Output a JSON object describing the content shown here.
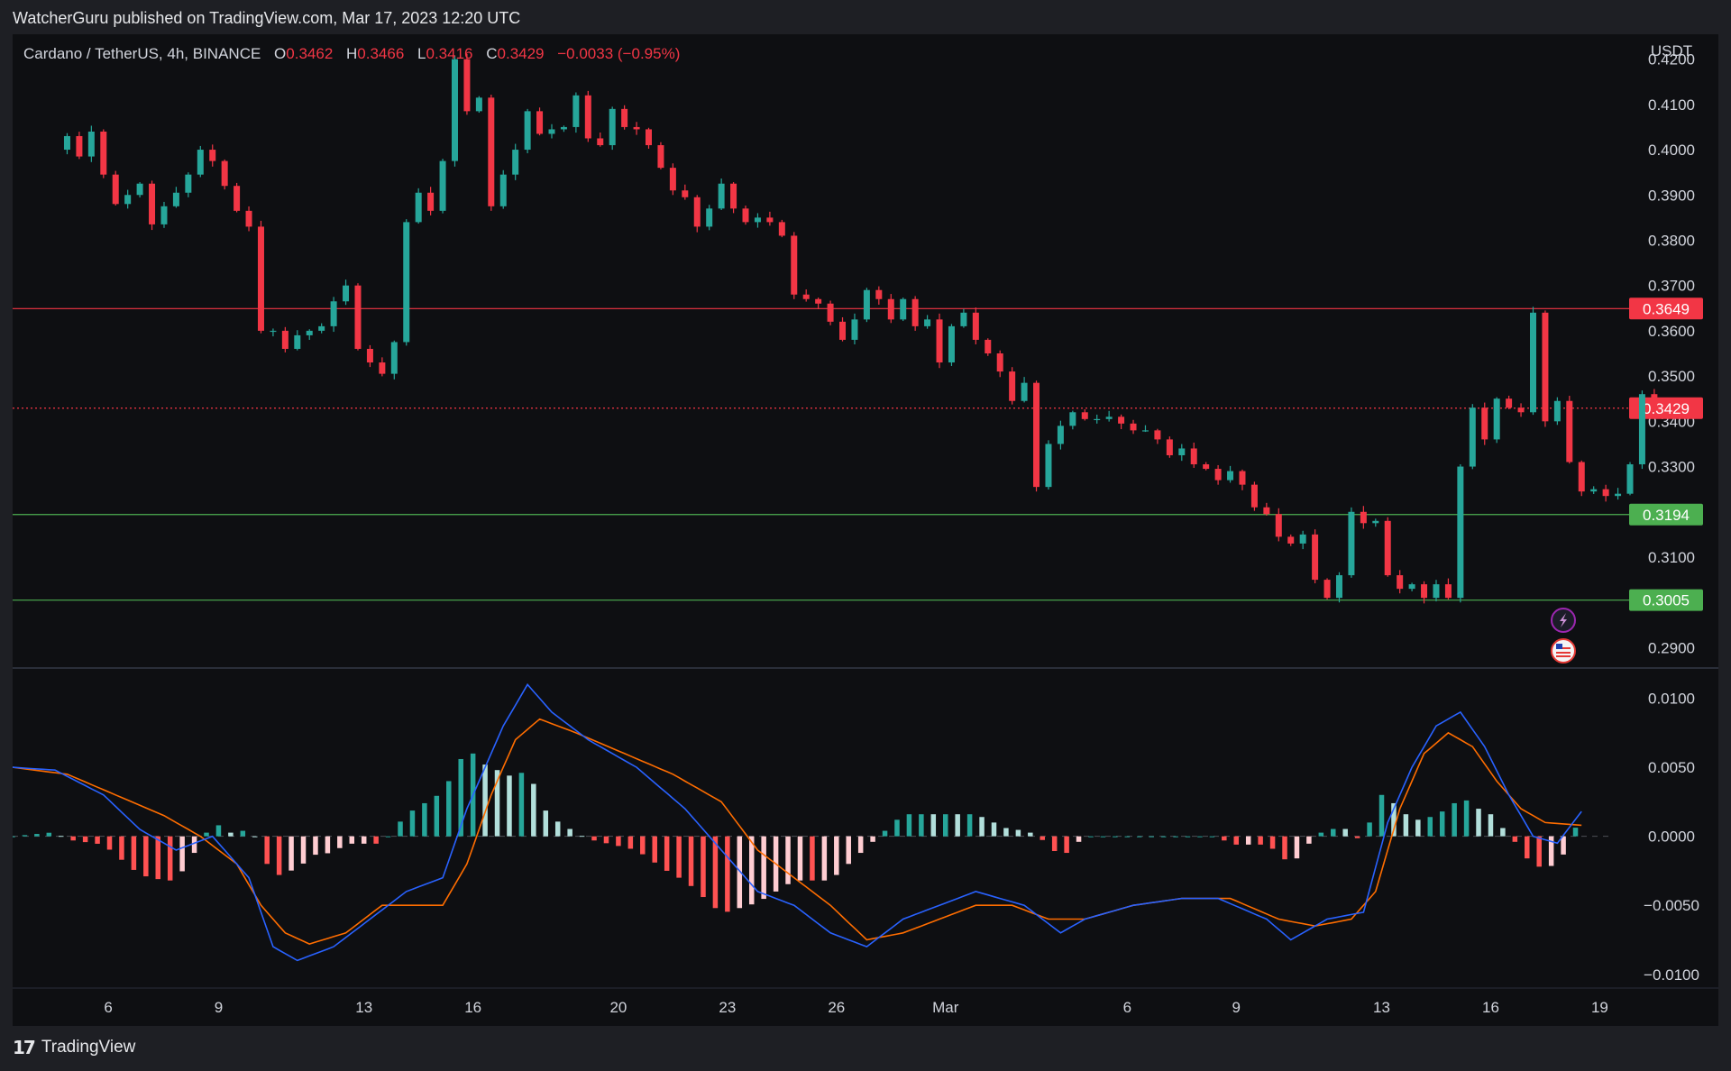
{
  "header": {
    "published": "WatcherGuru published on TradingView.com, Mar 17, 2023 12:20 UTC"
  },
  "legend": {
    "symbol": "Cardano / TetherUS, 4h, BINANCE",
    "o_label": "O",
    "o_value": "0.3462",
    "h_label": "H",
    "h_value": "0.3466",
    "l_label": "L",
    "l_value": "0.3416",
    "c_label": "C",
    "c_value": "0.3429",
    "change": "−0.0033 (−0.95%)"
  },
  "footer": {
    "brand": "TradingView",
    "logo": "17"
  },
  "colors": {
    "bull": "#26a69a",
    "bear": "#f23645",
    "macd": "#2962ff",
    "signal": "#ff6d00",
    "hist_bull_strong": "#26a69a",
    "hist_bull_weak": "#b2dfdb",
    "hist_bear_strong": "#ff5252",
    "hist_bear_weak": "#ffcdd2",
    "support": "#4caf50",
    "resistance": "#f23645"
  },
  "icons": [
    "lightning-icon",
    "us-flag-icon"
  ],
  "chart_data": [
    {
      "type": "candlestick",
      "currency": "USDT",
      "ylim": [
        0.2855,
        0.4255
      ],
      "y_ticks": [
        "0.4200",
        "0.4100",
        "0.4000",
        "0.3900",
        "0.3800",
        "0.3700",
        "0.3600",
        "0.3500",
        "0.3400",
        "0.3300",
        "0.3100",
        "0.2900"
      ],
      "x_ticks": [
        {
          "label": "6",
          "pos": 3.4
        },
        {
          "label": "9",
          "pos": 12.5
        },
        {
          "label": "13",
          "pos": 24.5
        },
        {
          "label": "16",
          "pos": 33.5
        },
        {
          "label": "20",
          "pos": 45.5
        },
        {
          "label": "23",
          "pos": 54.5
        },
        {
          "label": "26",
          "pos": 63.5
        },
        {
          "label": "Mar",
          "pos": 72.5
        },
        {
          "label": "6",
          "pos": 87.5
        },
        {
          "label": "9",
          "pos": 96.5
        },
        {
          "label": "13",
          "pos": 108.5
        },
        {
          "label": "16",
          "pos": 117.5
        },
        {
          "label": "19",
          "pos": 126.5
        }
      ],
      "x_range": [
        -4.5,
        129
      ],
      "levels": [
        {
          "value": 0.3649,
          "label": "0.3649",
          "style": "resistance"
        },
        {
          "value": 0.3429,
          "label": "0.3429",
          "style": "current"
        },
        {
          "value": 0.3194,
          "label": "0.3194",
          "style": "support"
        },
        {
          "value": 0.3005,
          "label": "0.3005",
          "style": "support"
        }
      ],
      "path": [
        0.4,
        0.403,
        0.3985,
        0.404,
        0.3945,
        0.388,
        0.39,
        0.3925,
        0.3835,
        0.3875,
        0.3905,
        0.3945,
        0.4,
        0.3975,
        0.392,
        0.3865,
        0.383,
        0.36,
        0.36,
        0.356,
        0.359,
        0.36,
        0.361,
        0.3665,
        0.37,
        0.356,
        0.353,
        0.3505,
        0.3575,
        0.384,
        0.3905,
        0.3865,
        0.3975,
        0.42,
        0.4085,
        0.4115,
        0.3875,
        0.3945,
        0.4,
        0.4085,
        0.4035,
        0.4045,
        0.405,
        0.412,
        0.4025,
        0.401,
        0.409,
        0.405,
        0.4045,
        0.401,
        0.396,
        0.391,
        0.3895,
        0.383,
        0.387,
        0.3925,
        0.387,
        0.384,
        0.385,
        0.384,
        0.381,
        0.368,
        0.367,
        0.366,
        0.362,
        0.358,
        0.3625,
        0.369,
        0.367,
        0.3625,
        0.367,
        0.361,
        0.3625,
        0.353,
        0.361,
        0.364,
        0.358,
        0.355,
        0.351,
        0.3445,
        0.3485,
        0.3255,
        0.335,
        0.339,
        0.342,
        0.3405,
        0.3405,
        0.341,
        0.3395,
        0.338,
        0.338,
        0.336,
        0.3325,
        0.334,
        0.3305,
        0.3295,
        0.327,
        0.329,
        0.326,
        0.321,
        0.3195,
        0.3145,
        0.313,
        0.315,
        0.305,
        0.301,
        0.306,
        0.32,
        0.3175,
        0.318,
        0.306,
        0.303,
        0.304,
        0.301,
        0.304,
        0.301,
        0.33,
        0.343,
        0.336,
        0.345,
        0.343,
        0.342,
        0.364,
        0.34,
        0.3445,
        0.331,
        0.3245,
        0.325,
        0.3235,
        0.324,
        0.3305,
        0.346,
        0.3429
      ]
    },
    {
      "type": "macd",
      "ylim": [
        -0.0108,
        0.012
      ],
      "y_ticks": [
        {
          "value": 0.01,
          "label": "0.0100"
        },
        {
          "value": 0.005,
          "label": "0.0050"
        },
        {
          "value": 0.0,
          "label": "0.0000"
        },
        {
          "value": -0.005,
          "label": "−0.0050"
        },
        {
          "value": -0.01,
          "label": "−0.0100"
        }
      ],
      "macd_keypoints": [
        [
          -4.5,
          0.005
        ],
        [
          -1,
          0.0048
        ],
        [
          3,
          0.003
        ],
        [
          6,
          0.0005
        ],
        [
          9,
          -0.001
        ],
        [
          12,
          0.0
        ],
        [
          15,
          -0.003
        ],
        [
          17,
          -0.008
        ],
        [
          19,
          -0.009
        ],
        [
          22,
          -0.008
        ],
        [
          25,
          -0.006
        ],
        [
          28,
          -0.004
        ],
        [
          31,
          -0.003
        ],
        [
          33,
          0.002
        ],
        [
          36,
          0.008
        ],
        [
          38,
          0.011
        ],
        [
          40,
          0.009
        ],
        [
          43,
          0.007
        ],
        [
          47,
          0.005
        ],
        [
          51,
          0.002
        ],
        [
          54,
          -0.001
        ],
        [
          57,
          -0.004
        ],
        [
          60,
          -0.005
        ],
        [
          63,
          -0.007
        ],
        [
          66,
          -0.008
        ],
        [
          69,
          -0.006
        ],
        [
          72,
          -0.005
        ],
        [
          75,
          -0.004
        ],
        [
          79,
          -0.005
        ],
        [
          82,
          -0.007
        ],
        [
          84,
          -0.006
        ],
        [
          88,
          -0.005
        ],
        [
          92,
          -0.0045
        ],
        [
          95,
          -0.0045
        ],
        [
          99,
          -0.006
        ],
        [
          101,
          -0.0075
        ],
        [
          104,
          -0.006
        ],
        [
          107,
          -0.0055
        ],
        [
          109,
          0.001
        ],
        [
          111,
          0.005
        ],
        [
          113,
          0.008
        ],
        [
          115,
          0.009
        ],
        [
          117,
          0.0065
        ],
        [
          119,
          0.003
        ],
        [
          121,
          0.0
        ],
        [
          123,
          -0.0005
        ],
        [
          125,
          0.0018
        ]
      ],
      "signal_keypoints": [
        [
          -4.5,
          0.005
        ],
        [
          0,
          0.0045
        ],
        [
          4,
          0.003
        ],
        [
          8,
          0.0015
        ],
        [
          11,
          0.0
        ],
        [
          14,
          -0.002
        ],
        [
          16,
          -0.005
        ],
        [
          18,
          -0.007
        ],
        [
          20,
          -0.0078
        ],
        [
          23,
          -0.007
        ],
        [
          26,
          -0.005
        ],
        [
          29,
          -0.005
        ],
        [
          31,
          -0.005
        ],
        [
          33,
          -0.002
        ],
        [
          35,
          0.003
        ],
        [
          37,
          0.007
        ],
        [
          39,
          0.0085
        ],
        [
          42,
          0.0075
        ],
        [
          46,
          0.006
        ],
        [
          50,
          0.0045
        ],
        [
          54,
          0.0025
        ],
        [
          57,
          -0.001
        ],
        [
          60,
          -0.003
        ],
        [
          63,
          -0.005
        ],
        [
          66,
          -0.0075
        ],
        [
          69,
          -0.007
        ],
        [
          72,
          -0.006
        ],
        [
          75,
          -0.005
        ],
        [
          78,
          -0.005
        ],
        [
          81,
          -0.006
        ],
        [
          84,
          -0.006
        ],
        [
          88,
          -0.005
        ],
        [
          92,
          -0.0045
        ],
        [
          96,
          -0.0045
        ],
        [
          100,
          -0.006
        ],
        [
          103,
          -0.0065
        ],
        [
          106,
          -0.006
        ],
        [
          108,
          -0.004
        ],
        [
          110,
          0.002
        ],
        [
          112,
          0.006
        ],
        [
          114,
          0.0075
        ],
        [
          116,
          0.0065
        ],
        [
          118,
          0.004
        ],
        [
          120,
          0.002
        ],
        [
          122,
          0.001
        ],
        [
          125,
          0.0008
        ]
      ]
    }
  ]
}
